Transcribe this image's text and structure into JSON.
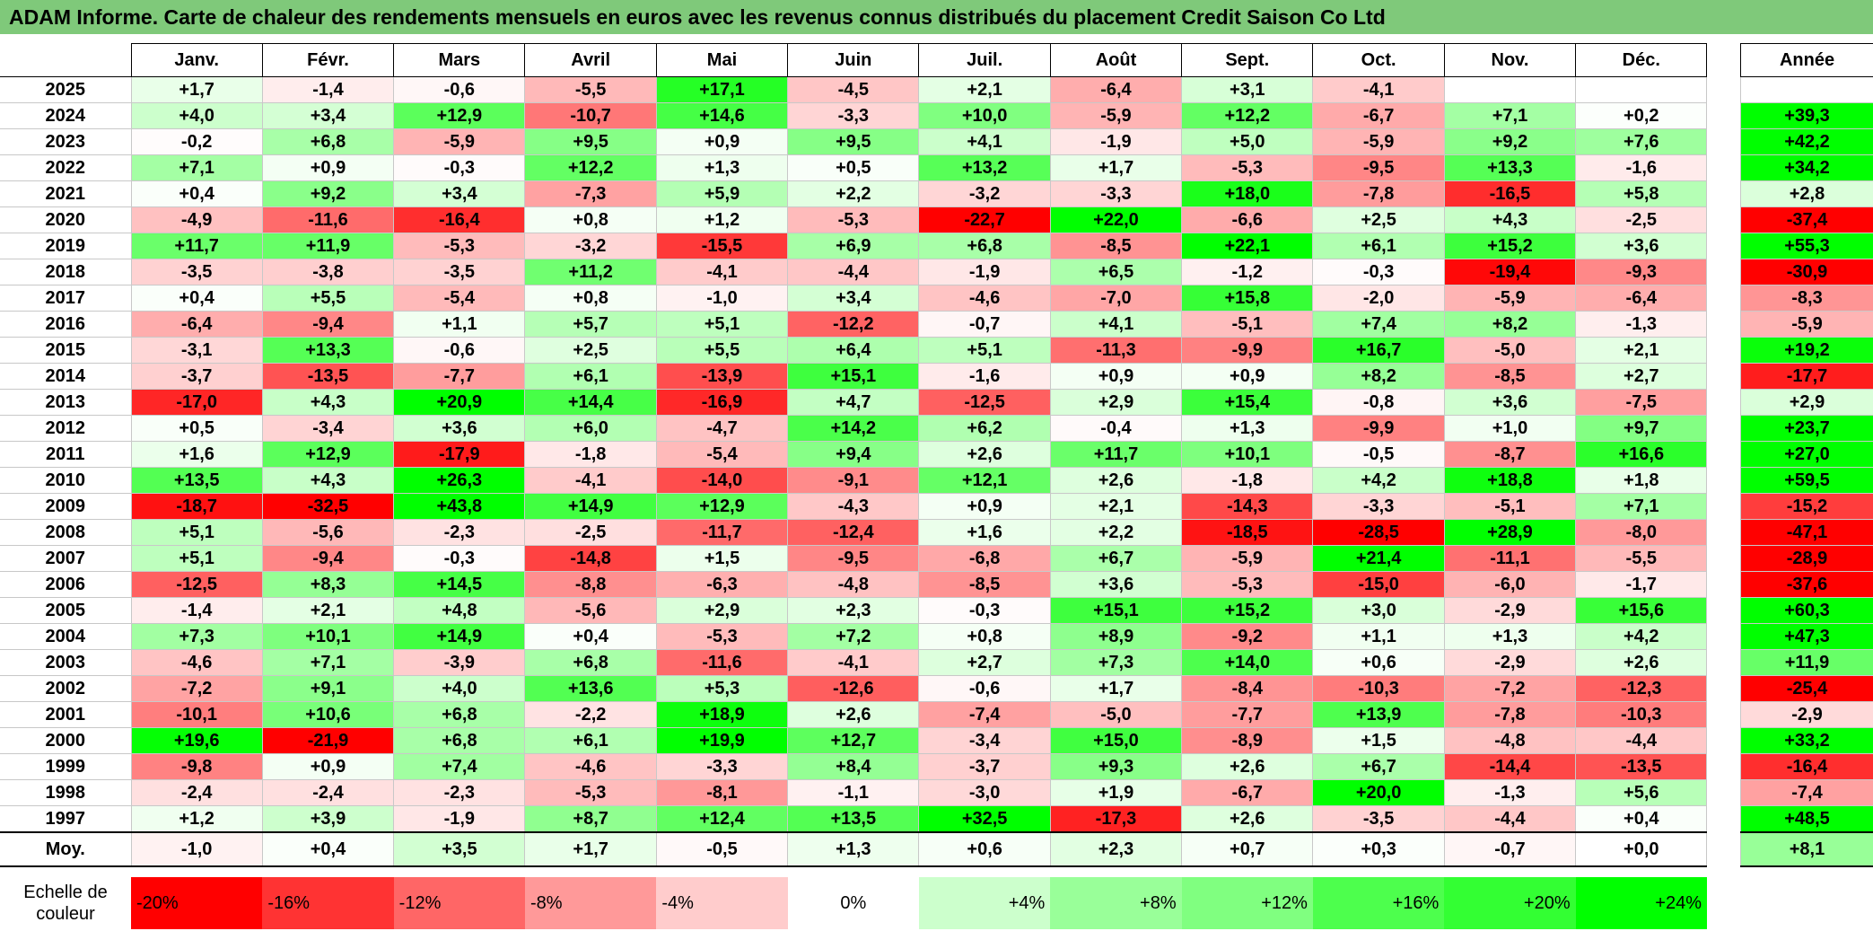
{
  "title": "ADAM Informe. Carte de chaleur des rendements mensuels en euros avec les revenus connus distribués du placement Credit Saison Co Ltd",
  "chart_data": {
    "type": "heatmap",
    "months": [
      "Janv.",
      "Févr.",
      "Mars",
      "Avril",
      "Mai",
      "Juin",
      "Juil.",
      "Août",
      "Sept.",
      "Oct.",
      "Nov.",
      "Déc."
    ],
    "annual_header": "Année",
    "rows": [
      {
        "year": "2025",
        "values": [
          "+1,7",
          "-1,4",
          "-0,6",
          "-5,5",
          "+17,1",
          "-4,5",
          "+2,1",
          "-6,4",
          "+3,1",
          "-4,1",
          "",
          ""
        ],
        "annual": ""
      },
      {
        "year": "2024",
        "values": [
          "+4,0",
          "+3,4",
          "+12,9",
          "-10,7",
          "+14,6",
          "-3,3",
          "+10,0",
          "-5,9",
          "+12,2",
          "-6,7",
          "+7,1",
          "+0,2"
        ],
        "annual": "+39,3"
      },
      {
        "year": "2023",
        "values": [
          "-0,2",
          "+6,8",
          "-5,9",
          "+9,5",
          "+0,9",
          "+9,5",
          "+4,1",
          "-1,9",
          "+5,0",
          "-5,9",
          "+9,2",
          "+7,6"
        ],
        "annual": "+42,2"
      },
      {
        "year": "2022",
        "values": [
          "+7,1",
          "+0,9",
          "-0,3",
          "+12,2",
          "+1,3",
          "+0,5",
          "+13,2",
          "+1,7",
          "-5,3",
          "-9,5",
          "+13,3",
          "-1,6"
        ],
        "annual": "+34,2"
      },
      {
        "year": "2021",
        "values": [
          "+0,4",
          "+9,2",
          "+3,4",
          "-7,3",
          "+5,9",
          "+2,2",
          "-3,2",
          "-3,3",
          "+18,0",
          "-7,8",
          "-16,5",
          "+5,8"
        ],
        "annual": "+2,8"
      },
      {
        "year": "2020",
        "values": [
          "-4,9",
          "-11,6",
          "-16,4",
          "+0,8",
          "+1,2",
          "-5,3",
          "-22,7",
          "+22,0",
          "-6,6",
          "+2,5",
          "+4,3",
          "-2,5"
        ],
        "annual": "-37,4"
      },
      {
        "year": "2019",
        "values": [
          "+11,7",
          "+11,9",
          "-5,3",
          "-3,2",
          "-15,5",
          "+6,9",
          "+6,8",
          "-8,5",
          "+22,1",
          "+6,1",
          "+15,2",
          "+3,6"
        ],
        "annual": "+55,3"
      },
      {
        "year": "2018",
        "values": [
          "-3,5",
          "-3,8",
          "-3,5",
          "+11,2",
          "-4,1",
          "-4,4",
          "-1,9",
          "+6,5",
          "-1,2",
          "-0,3",
          "-19,4",
          "-9,3"
        ],
        "annual": "-30,9"
      },
      {
        "year": "2017",
        "values": [
          "+0,4",
          "+5,5",
          "-5,4",
          "+0,8",
          "-1,0",
          "+3,4",
          "-4,6",
          "-7,0",
          "+15,8",
          "-2,0",
          "-5,9",
          "-6,4"
        ],
        "annual": "-8,3"
      },
      {
        "year": "2016",
        "values": [
          "-6,4",
          "-9,4",
          "+1,1",
          "+5,7",
          "+5,1",
          "-12,2",
          "-0,7",
          "+4,1",
          "-5,1",
          "+7,4",
          "+8,2",
          "-1,3"
        ],
        "annual": "-5,9"
      },
      {
        "year": "2015",
        "values": [
          "-3,1",
          "+13,3",
          "-0,6",
          "+2,5",
          "+5,5",
          "+6,4",
          "+5,1",
          "-11,3",
          "-9,9",
          "+16,7",
          "-5,0",
          "+2,1"
        ],
        "annual": "+19,2"
      },
      {
        "year": "2014",
        "values": [
          "-3,7",
          "-13,5",
          "-7,7",
          "+6,1",
          "-13,9",
          "+15,1",
          "-1,6",
          "+0,9",
          "+0,9",
          "+8,2",
          "-8,5",
          "+2,7"
        ],
        "annual": "-17,7"
      },
      {
        "year": "2013",
        "values": [
          "-17,0",
          "+4,3",
          "+20,9",
          "+14,4",
          "-16,9",
          "+4,7",
          "-12,5",
          "+2,9",
          "+15,4",
          "-0,8",
          "+3,6",
          "-7,5"
        ],
        "annual": "+2,9"
      },
      {
        "year": "2012",
        "values": [
          "+0,5",
          "-3,4",
          "+3,6",
          "+6,0",
          "-4,7",
          "+14,2",
          "+6,2",
          "-0,4",
          "+1,3",
          "-9,9",
          "+1,0",
          "+9,7"
        ],
        "annual": "+23,7"
      },
      {
        "year": "2011",
        "values": [
          "+1,6",
          "+12,9",
          "-17,9",
          "-1,8",
          "-5,4",
          "+9,4",
          "+2,6",
          "+11,7",
          "+10,1",
          "-0,5",
          "-8,7",
          "+16,6"
        ],
        "annual": "+27,0"
      },
      {
        "year": "2010",
        "values": [
          "+13,5",
          "+4,3",
          "+26,3",
          "-4,1",
          "-14,0",
          "-9,1",
          "+12,1",
          "+2,6",
          "-1,8",
          "+4,2",
          "+18,8",
          "+1,8"
        ],
        "annual": "+59,5"
      },
      {
        "year": "2009",
        "values": [
          "-18,7",
          "-32,5",
          "+43,8",
          "+14,9",
          "+12,9",
          "-4,3",
          "+0,9",
          "+2,1",
          "-14,3",
          "-3,3",
          "-5,1",
          "+7,1"
        ],
        "annual": "-15,2"
      },
      {
        "year": "2008",
        "values": [
          "+5,1",
          "-5,6",
          "-2,3",
          "-2,5",
          "-11,7",
          "-12,4",
          "+1,6",
          "+2,2",
          "-18,5",
          "-28,5",
          "+28,9",
          "-8,0"
        ],
        "annual": "-47,1"
      },
      {
        "year": "2007",
        "values": [
          "+5,1",
          "-9,4",
          "-0,3",
          "-14,8",
          "+1,5",
          "-9,5",
          "-6,8",
          "+6,7",
          "-5,9",
          "+21,4",
          "-11,1",
          "-5,5"
        ],
        "annual": "-28,9"
      },
      {
        "year": "2006",
        "values": [
          "-12,5",
          "+8,3",
          "+14,5",
          "-8,8",
          "-6,3",
          "-4,8",
          "-8,5",
          "+3,6",
          "-5,3",
          "-15,0",
          "-6,0",
          "-1,7"
        ],
        "annual": "-37,6"
      },
      {
        "year": "2005",
        "values": [
          "-1,4",
          "+2,1",
          "+4,8",
          "-5,6",
          "+2,9",
          "+2,3",
          "-0,3",
          "+15,1",
          "+15,2",
          "+3,0",
          "-2,9",
          "+15,6"
        ],
        "annual": "+60,3"
      },
      {
        "year": "2004",
        "values": [
          "+7,3",
          "+10,1",
          "+14,9",
          "+0,4",
          "-5,3",
          "+7,2",
          "+0,8",
          "+8,9",
          "-9,2",
          "+1,1",
          "+1,3",
          "+4,2"
        ],
        "annual": "+47,3"
      },
      {
        "year": "2003",
        "values": [
          "-4,6",
          "+7,1",
          "-3,9",
          "+6,8",
          "-11,6",
          "-4,1",
          "+2,7",
          "+7,3",
          "+14,0",
          "+0,6",
          "-2,9",
          "+2,6"
        ],
        "annual": "+11,9"
      },
      {
        "year": "2002",
        "values": [
          "-7,2",
          "+9,1",
          "+4,0",
          "+13,6",
          "+5,3",
          "-12,6",
          "-0,6",
          "+1,7",
          "-8,4",
          "-10,3",
          "-7,2",
          "-12,3"
        ],
        "annual": "-25,4"
      },
      {
        "year": "2001",
        "values": [
          "-10,1",
          "+10,6",
          "+6,8",
          "-2,2",
          "+18,9",
          "+2,6",
          "-7,4",
          "-5,0",
          "-7,7",
          "+13,9",
          "-7,8",
          "-10,3"
        ],
        "annual": "-2,9"
      },
      {
        "year": "2000",
        "values": [
          "+19,6",
          "-21,9",
          "+6,8",
          "+6,1",
          "+19,9",
          "+12,7",
          "-3,4",
          "+15,0",
          "-8,9",
          "+1,5",
          "-4,8",
          "-4,4"
        ],
        "annual": "+33,2"
      },
      {
        "year": "1999",
        "values": [
          "-9,8",
          "+0,9",
          "+7,4",
          "-4,6",
          "-3,3",
          "+8,4",
          "-3,7",
          "+9,3",
          "+2,6",
          "+6,7",
          "-14,4",
          "-13,5"
        ],
        "annual": "-16,4"
      },
      {
        "year": "1998",
        "values": [
          "-2,4",
          "-2,4",
          "-2,3",
          "-5,3",
          "-8,1",
          "-1,1",
          "-3,0",
          "+1,9",
          "-6,7",
          "+20,0",
          "-1,3",
          "+5,6"
        ],
        "annual": "-7,4"
      },
      {
        "year": "1997",
        "values": [
          "+1,2",
          "+3,9",
          "-1,9",
          "+8,7",
          "+12,4",
          "+13,5",
          "+32,5",
          "-17,3",
          "+2,6",
          "-3,5",
          "-4,4",
          "+0,4"
        ],
        "annual": "+48,5"
      }
    ],
    "average": {
      "label": "Moy.",
      "values": [
        "-1,0",
        "+0,4",
        "+3,5",
        "+1,7",
        "-0,5",
        "+1,3",
        "+0,6",
        "+2,3",
        "+0,7",
        "+0,3",
        "-0,7",
        "+0,0"
      ],
      "annual": "+8,1"
    },
    "color_scale": {
      "label": "Echelle de couleur",
      "stops": [
        {
          "label": "-20%",
          "value": -20,
          "color": "#ff0000",
          "align": "left"
        },
        {
          "label": "-16%",
          "value": -16,
          "color": "#ff3333",
          "align": "left"
        },
        {
          "label": "-12%",
          "value": -12,
          "color": "#ff6666",
          "align": "left"
        },
        {
          "label": "-8%",
          "value": -8,
          "color": "#ff9999",
          "align": "left"
        },
        {
          "label": "-4%",
          "value": -4,
          "color": "#ffcccc",
          "align": "left"
        },
        {
          "label": "0%",
          "value": 0,
          "color": "#ffffff",
          "align": "center"
        },
        {
          "label": "+4%",
          "value": 4,
          "color": "#ccffcc",
          "align": "right"
        },
        {
          "label": "+8%",
          "value": 8,
          "color": "#99ff99",
          "align": "right"
        },
        {
          "label": "+12%",
          "value": 12,
          "color": "#80ff80",
          "align": "right"
        },
        {
          "label": "+16%",
          "value": 16,
          "color": "#4dff4d",
          "align": "right"
        },
        {
          "label": "+20%",
          "value": 20,
          "color": "#33ff33",
          "align": "right"
        },
        {
          "label": "+24%",
          "value": 24,
          "color": "#00ff00",
          "align": "right"
        }
      ]
    },
    "colors": {
      "negative_max": "#ff0000",
      "neutral": "#ffffff",
      "positive_max": "#00ff00"
    }
  }
}
